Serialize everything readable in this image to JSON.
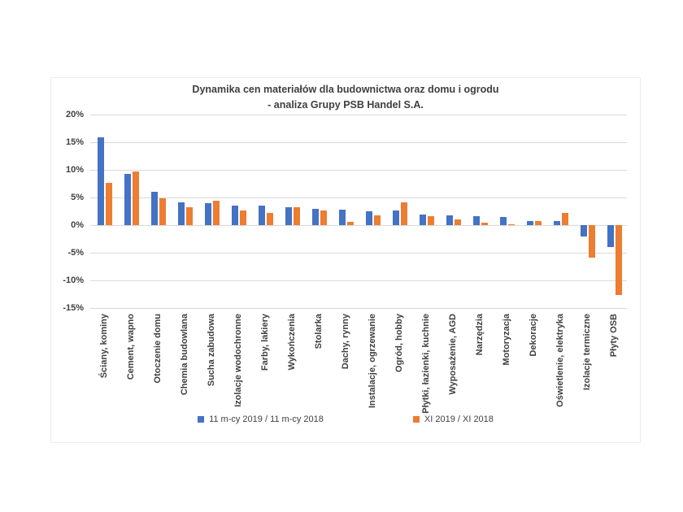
{
  "title": {
    "line1": "Dynamika cen materiałów dla budownictwa oraz domu i ogrodu",
    "line2": "- analiza Grupy PSB Handel S.A."
  },
  "colors": {
    "series1": "#4472C4",
    "series2": "#ED7D31",
    "gridline": "#d9d9d9",
    "axis_text": "#404040"
  },
  "chart_data": {
    "type": "bar",
    "title": "Dynamika cen materiałów dla budownictwa oraz domu i ogrodu - analiza Grupy PSB Handel S.A.",
    "categories": [
      "Ściany, kominy",
      "Cement, wapno",
      "Otoczenie domu",
      "Chemia budowlana",
      "Sucha zabudowa",
      "Izolacje wodochronne",
      "Farby, lakiery",
      "Wykończenia",
      "Stolarka",
      "Dachy, rynny",
      "Instalacje, ogrzewanie",
      "Ogród, hobby",
      "Płytki, łazienki, kuchnie",
      "Wyposażenie, AGD",
      "Narzędzia",
      "Motoryzacja",
      "Dekoracje",
      "Oświetlenie, elektryka",
      "Izolacje termiczne",
      "Płyty OSB"
    ],
    "series": [
      {
        "name": "11 m-cy 2019 / 11 m-cy 2018",
        "color": "#4472C4",
        "values": [
          15.9,
          9.3,
          6.0,
          4.1,
          4.0,
          3.5,
          3.5,
          3.3,
          2.9,
          2.8,
          2.5,
          2.7,
          1.9,
          1.7,
          1.6,
          1.5,
          0.8,
          0.7,
          -2.0,
          -3.9
        ]
      },
      {
        "name": "XI 2019 / XI 2018",
        "color": "#ED7D31",
        "values": [
          7.6,
          9.7,
          4.9,
          3.3,
          4.4,
          2.6,
          2.2,
          3.3,
          2.7,
          0.6,
          1.7,
          4.1,
          1.6,
          1.0,
          0.4,
          0.1,
          0.7,
          2.2,
          -5.9,
          -12.7
        ]
      }
    ],
    "y_axis": {
      "min": -15,
      "max": 20,
      "step": 5,
      "unit": "%",
      "tick_labels": [
        "20%",
        "15%",
        "10%",
        "5%",
        "0%",
        "-5%",
        "-10%",
        "-15%"
      ]
    },
    "grid": true,
    "legend_position": "bottom"
  }
}
